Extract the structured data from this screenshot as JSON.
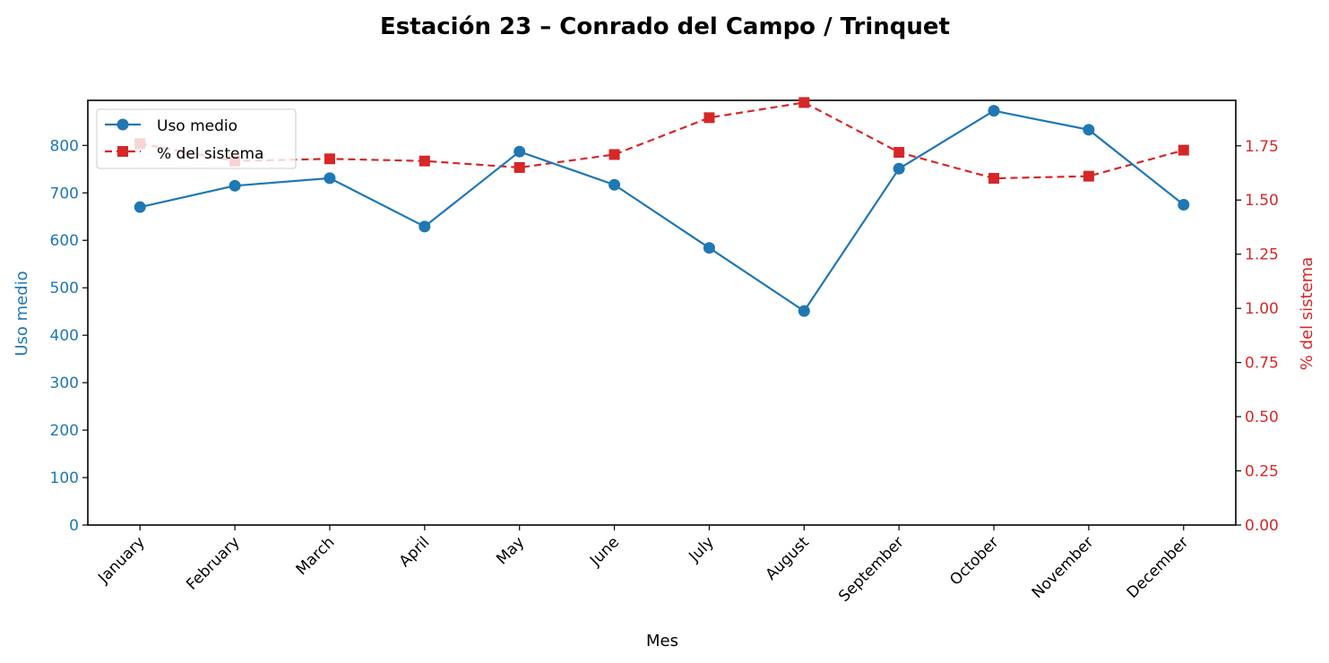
{
  "chart_data": {
    "type": "line",
    "title": "Estación 23 – Conrado del Campo / Trinquet",
    "xlabel": "Mes",
    "ylabel_left": "Uso medio",
    "ylabel_right": "% del sistema",
    "categories": [
      "January",
      "February",
      "March",
      "April",
      "May",
      "June",
      "July",
      "August",
      "September",
      "October",
      "November",
      "December"
    ],
    "ylim_left": [
      0,
      895
    ],
    "ylim_right": [
      0,
      1.96
    ],
    "yticks_left": [
      0,
      100,
      200,
      300,
      400,
      500,
      600,
      700,
      800
    ],
    "yticks_right": [
      "0.00",
      "0.25",
      "0.50",
      "0.75",
      "1.00",
      "1.25",
      "1.50",
      "1.75"
    ],
    "grid": false,
    "legend_position": "upper-left",
    "series": [
      {
        "name": "Uso medio",
        "axis": "left",
        "color": "#1f77b4",
        "style": "solid",
        "marker": "circle",
        "values": [
          670,
          715,
          731,
          629,
          787,
          717,
          584,
          451,
          751,
          873,
          833,
          675
        ]
      },
      {
        "name": "% del sistema",
        "axis": "right",
        "color": "#d62728",
        "style": "dashed",
        "marker": "square",
        "values": [
          1.76,
          1.68,
          1.69,
          1.68,
          1.65,
          1.71,
          1.88,
          1.95,
          1.72,
          1.6,
          1.61,
          1.73
        ]
      }
    ]
  }
}
